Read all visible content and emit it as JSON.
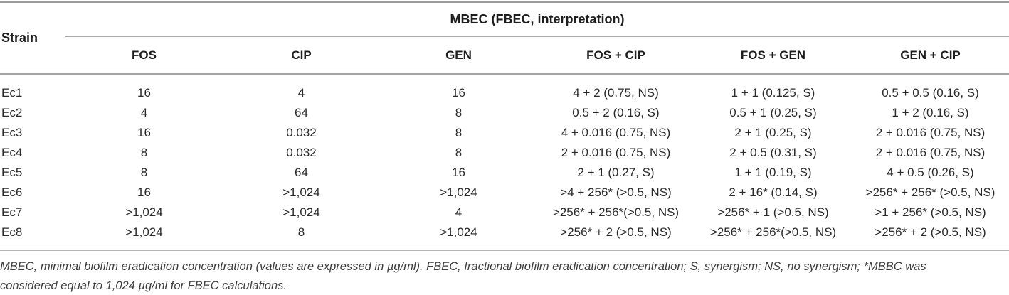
{
  "table": {
    "strain_header": "Strain",
    "group_header": "MBEC (FBEC, interpretation)",
    "columns": [
      "FOS",
      "CIP",
      "GEN",
      "FOS + CIP",
      "FOS + GEN",
      "GEN + CIP"
    ],
    "rows": [
      {
        "strain": "Ec1",
        "values": [
          "16",
          "4",
          "16",
          "4 + 2 (0.75, NS)",
          "1 + 1 (0.125, S)",
          "0.5 + 0.5 (0.16, S)"
        ]
      },
      {
        "strain": "Ec2",
        "values": [
          "4",
          "64",
          "8",
          "0.5 + 2 (0.16, S)",
          "0.5 + 1 (0.25, S)",
          "1 + 2 (0.16, S)"
        ]
      },
      {
        "strain": "Ec3",
        "values": [
          "16",
          "0.032",
          "8",
          "4 + 0.016 (0.75, NS)",
          "2 + 1 (0.25, S)",
          "2 + 0.016 (0.75, NS)"
        ]
      },
      {
        "strain": "Ec4",
        "values": [
          "8",
          "0.032",
          "8",
          "2 + 0.016 (0.75, NS)",
          "2 + 0.5 (0.31, S)",
          "2 + 0.016 (0.75, NS)"
        ]
      },
      {
        "strain": "Ec5",
        "values": [
          "8",
          "64",
          "16",
          "2 + 1 (0.27, S)",
          "1 + 1 (0.19, S)",
          "4 + 0.5 (0.26, S)"
        ]
      },
      {
        "strain": "Ec6",
        "values": [
          "16",
          ">1,024",
          ">1,024",
          ">4 + 256* (>0.5, NS)",
          "2 + 16* (0.14, S)",
          ">256* + 256* (>0.5, NS)"
        ]
      },
      {
        "strain": "Ec7",
        "values": [
          ">1,024",
          ">1,024",
          "4",
          ">256* + 256*(>0.5, NS)",
          ">256* + 1 (>0.5, NS)",
          ">1 + 256* (>0.5, NS)"
        ]
      },
      {
        "strain": "Ec8",
        "values": [
          ">1,024",
          "8",
          ">1,024",
          ">256* + 2 (>0.5, NS)",
          ">256* + 256*(>0.5, NS)",
          ">256* + 2 (>0.5, NS)"
        ]
      }
    ]
  },
  "footnote": {
    "line1": "MBEC, minimal biofilm eradication concentration (values are expressed in µg/ml). FBEC, fractional biofilm eradication concentration; S, synergism; NS, no synergism; *MBBC was",
    "line2": "considered equal to 1,024 µg/ml for FBEC calculations."
  },
  "colors": {
    "text": "#262626",
    "rule_top": "#9c9c9c",
    "rule_mid": "#a3a3a3",
    "rule_foot": "#b5b5b5",
    "footnote_text": "#3d3d3d"
  }
}
